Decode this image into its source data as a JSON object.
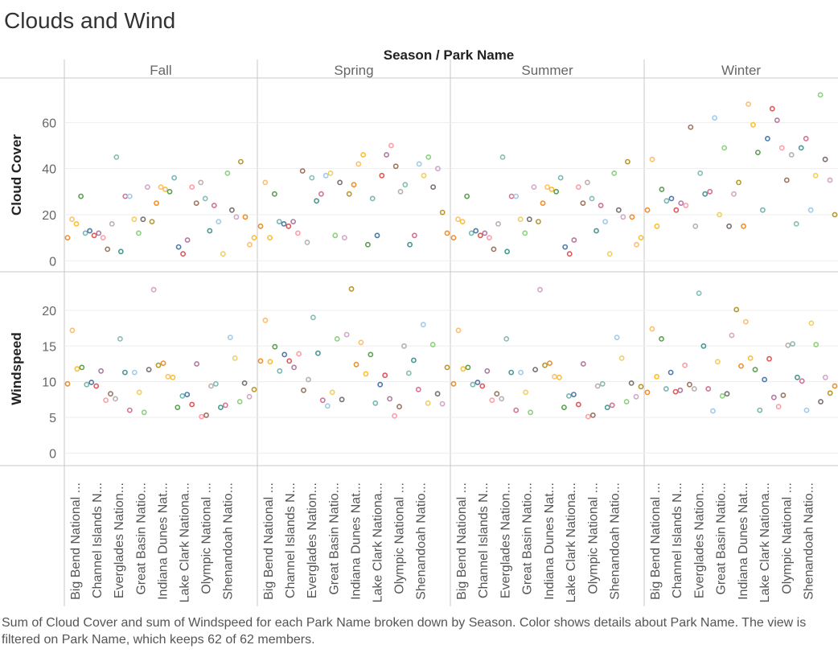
{
  "title": "Clouds and Wind",
  "caption": "Sum of Cloud Cover and sum of Windspeed for each Park Name broken down by Season.  Color shows details about Park Name. The view is filtered on Park Name, which keeps 62 of 62 members.",
  "colors": [
    "#f28e2b",
    "#fdbf6f",
    "#ffbe2b",
    "#59a14f",
    "#76b7b2",
    "#4e79a7",
    "#e15759",
    "#b07aa1",
    "#ff9da7",
    "#9c755f",
    "#bab0ac",
    "#86bcb6",
    "#499894",
    "#d37295",
    "#a0cbe8",
    "#f1ce63",
    "#8cd17d",
    "#79706e",
    "#d4a6c8",
    "#b6992d"
  ],
  "chart_data": {
    "type": "scatter",
    "header_title": "Season  /  Park Name",
    "seasons": [
      "Fall",
      "Spring",
      "Summer",
      "Winter"
    ],
    "park_labels": [
      "Big Bend National ...",
      "Channel Islands N...",
      "Everglades Nation...",
      "Great Basin Natio...",
      "Indiana Dunes Nat...",
      "Lake Clark Nationa...",
      "Olympic National ...",
      "Shenandoah Natio..."
    ],
    "rows": [
      {
        "measure": "Cloud Cover",
        "yticks": [
          0,
          20,
          40,
          60
        ],
        "ylim": [
          -2,
          72
        ],
        "values": {
          "Fall": [
            10,
            18,
            16,
            28,
            12,
            13,
            11,
            12,
            10,
            5,
            16,
            45,
            4,
            28,
            28,
            18,
            12,
            18,
            32,
            17,
            25,
            32,
            31,
            30,
            36,
            6,
            3,
            9,
            32,
            25,
            34,
            27,
            13,
            24,
            17,
            3,
            38,
            22,
            19,
            43,
            19,
            7,
            10
          ],
          "Spring": [
            15,
            34,
            10,
            29,
            17,
            16,
            15,
            17,
            12,
            39,
            8,
            36,
            26,
            29,
            37,
            38,
            11,
            34,
            10,
            29,
            33,
            42,
            46,
            7,
            27,
            11,
            37,
            46,
            50,
            41,
            30,
            33,
            7,
            11,
            42,
            37,
            45,
            32,
            40,
            21,
            12
          ],
          "Summer": [
            10,
            18,
            17,
            28,
            12,
            13,
            11,
            12,
            10,
            5,
            16,
            45,
            4,
            28,
            28,
            18,
            12,
            18,
            32,
            17,
            25,
            32,
            31,
            30,
            36,
            6,
            3,
            9,
            32,
            25,
            34,
            27,
            13,
            24,
            17,
            3,
            38,
            22,
            19,
            43,
            19,
            7,
            10
          ],
          "Winter": [
            22,
            44,
            15,
            31,
            26,
            27,
            22,
            25,
            24,
            58,
            15,
            38,
            29,
            30,
            62,
            20,
            49,
            15,
            29,
            34,
            15,
            68,
            59,
            47,
            22,
            53,
            66,
            61,
            49,
            35,
            46,
            16,
            49,
            53,
            22,
            37,
            72,
            44,
            35,
            20
          ]
        }
      },
      {
        "measure": "Windspeed",
        "yticks": [
          0,
          5,
          10,
          15,
          20
        ],
        "ylim": [
          -1.2,
          24.5
        ],
        "values": {
          "Fall": [
            9.7,
            17.2,
            11.8,
            12.0,
            9.6,
            9.9,
            9.4,
            11.5,
            7.4,
            8.3,
            7.6,
            16.0,
            11.3,
            6.0,
            11.3,
            8.5,
            5.7,
            11.7,
            22.9,
            12.3,
            12.6,
            10.7,
            10.6,
            6.4,
            8.0,
            8.2,
            6.8,
            12.5,
            5.1,
            5.3,
            9.4,
            9.7,
            6.4,
            6.7,
            16.2,
            13.3,
            7.2,
            9.8,
            7.9,
            8.9
          ],
          "Spring": [
            12.9,
            18.6,
            12.8,
            14.9,
            11.5,
            13.8,
            12.9,
            12.0,
            13.9,
            8.8,
            10.3,
            19.0,
            14.0,
            7.4,
            6.6,
            8.5,
            16.0,
            7.5,
            16.6,
            23.0,
            12.4,
            15.5,
            11.1,
            13.8,
            7.0,
            9.6,
            10.9,
            7.6,
            5.2,
            6.5,
            15.0,
            11.2,
            13.0,
            8.9,
            18.0,
            7.0,
            15.2,
            8.3,
            6.9,
            12.0
          ],
          "Summer": [
            9.7,
            17.2,
            11.8,
            12.0,
            9.6,
            9.9,
            9.4,
            11.5,
            7.4,
            8.3,
            7.6,
            16.0,
            11.3,
            6.0,
            11.3,
            8.5,
            5.7,
            11.7,
            22.9,
            12.3,
            12.6,
            10.7,
            10.6,
            6.4,
            8.0,
            8.2,
            6.8,
            12.5,
            5.1,
            5.3,
            9.4,
            9.7,
            6.4,
            6.7,
            16.2,
            13.3,
            7.2,
            9.8,
            7.9,
            9.3
          ],
          "Winter": [
            8.5,
            17.4,
            10.7,
            16.0,
            9.0,
            11.3,
            8.6,
            8.8,
            12.3,
            9.6,
            9.0,
            22.4,
            15.0,
            9.0,
            5.9,
            12.8,
            8.0,
            8.3,
            16.5,
            20.1,
            12.2,
            18.4,
            13.3,
            11.7,
            6.0,
            10.3,
            13.2,
            7.8,
            6.5,
            8.1,
            15.1,
            15.3,
            10.6,
            10.1,
            6.0,
            18.2,
            15.2,
            7.2,
            10.6,
            8.4,
            9.4
          ]
        }
      }
    ]
  }
}
